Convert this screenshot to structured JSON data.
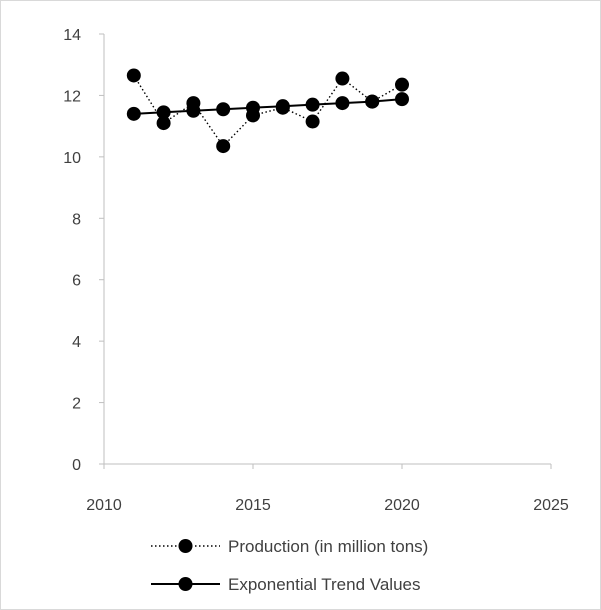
{
  "chart_data": {
    "type": "scatter",
    "title": "",
    "xlabel": "",
    "ylabel": "",
    "xlim": [
      2010,
      2025
    ],
    "ylim": [
      0,
      14
    ],
    "x_ticks": [
      2010,
      2015,
      2020,
      2025
    ],
    "y_ticks": [
      0,
      2,
      4,
      6,
      8,
      10,
      12,
      14
    ],
    "grid": false,
    "legend_position": "bottom",
    "series": [
      {
        "name": "Production (in million tons)",
        "line_style": "dotted",
        "color": "#000000",
        "x": [
          2011,
          2012,
          2013,
          2014,
          2015,
          2016,
          2017,
          2018,
          2019,
          2020
        ],
        "y": [
          12.65,
          11.1,
          11.75,
          10.35,
          11.35,
          11.6,
          11.15,
          12.55,
          11.8,
          12.35
        ]
      },
      {
        "name": "Exponential Trend Values",
        "line_style": "solid",
        "color": "#000000",
        "x": [
          2011,
          2012,
          2013,
          2014,
          2015,
          2016,
          2017,
          2018,
          2019,
          2020
        ],
        "y": [
          11.4,
          11.45,
          11.5,
          11.55,
          11.6,
          11.65,
          11.7,
          11.75,
          11.8,
          11.88
        ]
      }
    ]
  }
}
